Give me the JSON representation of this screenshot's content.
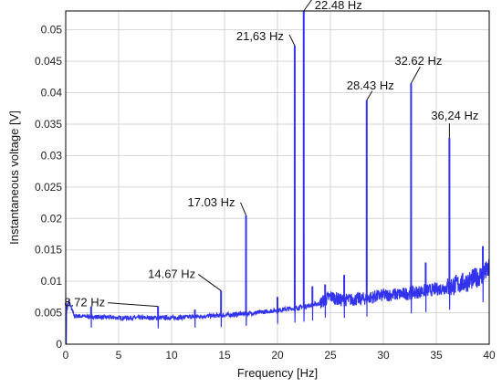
{
  "chart_data": {
    "type": "line",
    "xlabel": "Frequency [Hz]",
    "ylabel": "Instantaneous voltage [V]",
    "xlim": [
      0,
      40
    ],
    "ylim": [
      0,
      0.053
    ],
    "xticks": [
      "0",
      "5",
      "10",
      "15",
      "20",
      "25",
      "30",
      "35",
      "40"
    ],
    "yticks": [
      "0",
      "0.005",
      "0.01",
      "0.015",
      "0.02",
      "0.025",
      "0.03",
      "0.035",
      "0.04",
      "0.045",
      "0.05"
    ],
    "xtick_values": [
      0,
      5,
      10,
      15,
      20,
      25,
      30,
      35,
      40
    ],
    "ytick_values": [
      0,
      0.005,
      0.01,
      0.015,
      0.02,
      0.025,
      0.03,
      0.035,
      0.04,
      0.045,
      0.05
    ],
    "grid": true,
    "line_color": "#3333ee",
    "series": [
      {
        "baseline": [
          [
            0,
            0.0045
          ],
          [
            0.3,
            0.0068
          ],
          [
            0.8,
            0.0045
          ],
          [
            5,
            0.0042
          ],
          [
            10,
            0.0042
          ],
          [
            15,
            0.0046
          ],
          [
            18,
            0.005
          ],
          [
            20,
            0.0054
          ],
          [
            22,
            0.0058
          ],
          [
            24,
            0.0065
          ],
          [
            25,
            0.0076
          ],
          [
            26,
            0.007
          ],
          [
            28,
            0.0072
          ],
          [
            30,
            0.0078
          ],
          [
            32,
            0.008
          ],
          [
            34,
            0.0085
          ],
          [
            36,
            0.009
          ],
          [
            38,
            0.01
          ],
          [
            39.3,
            0.011
          ],
          [
            40,
            0.012
          ]
        ],
        "peaks": [
          [
            8.72,
            0.006
          ],
          [
            14.67,
            0.0085
          ],
          [
            17.03,
            0.0205
          ],
          [
            21.63,
            0.0475
          ],
          [
            22.48,
            0.053
          ],
          [
            28.43,
            0.0388
          ],
          [
            32.62,
            0.0415
          ],
          [
            36.24,
            0.0328
          ],
          [
            39.4,
            0.0156
          ],
          [
            34.0,
            0.013
          ],
          [
            26.3,
            0.011
          ],
          [
            23.3,
            0.0092
          ],
          [
            24.5,
            0.0095
          ],
          [
            20.0,
            0.0075
          ],
          [
            2.4,
            0.006
          ],
          [
            12.2,
            0.0055
          ]
        ]
      }
    ],
    "annotations": [
      {
        "text": "8.72 Hz",
        "x": 8.72,
        "y": 0.006
      },
      {
        "text": "14.67 Hz",
        "x": 14.67,
        "y": 0.0085
      },
      {
        "text": "17.03 Hz",
        "x": 17.03,
        "y": 0.0205
      },
      {
        "text": "21,63 Hz",
        "x": 21.63,
        "y": 0.0475
      },
      {
        "text": "22.48 Hz",
        "x": 22.48,
        "y": 0.053
      },
      {
        "text": "28.43 Hz",
        "x": 28.43,
        "y": 0.0388
      },
      {
        "text": "32.62 Hz",
        "x": 32.62,
        "y": 0.0415
      },
      {
        "text": "36,24 Hz",
        "x": 36.24,
        "y": 0.0328
      }
    ]
  }
}
